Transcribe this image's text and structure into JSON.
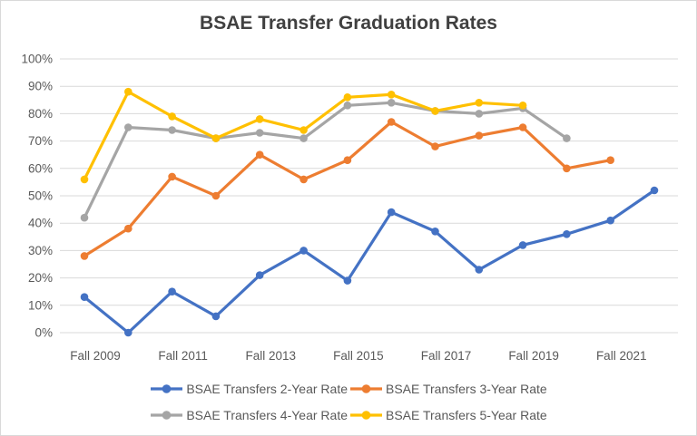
{
  "window": {
    "background": "#FFFFFF",
    "frame_border_color": "#D9D9D9"
  },
  "chart_data": {
    "type": "line",
    "title": "BSAE Transfer Graduation Rates",
    "title_color": "#404040",
    "axis_label_color": "#595959",
    "gridline_color": "#D9D9D9",
    "grid": "horizontal",
    "legend_position": "bottom",
    "xlabel": "",
    "ylabel": "",
    "ylim": [
      0,
      100
    ],
    "y_tick_step": 10,
    "y_ticks": [
      "0%",
      "10%",
      "20%",
      "30%",
      "40%",
      "50%",
      "60%",
      "70%",
      "80%",
      "90%",
      "100%"
    ],
    "categories": [
      "Fall 2009",
      "Fall 2010",
      "Fall 2011",
      "Fall 2012",
      "Fall 2013",
      "Fall 2014",
      "Fall 2015",
      "Fall 2016",
      "Fall 2017",
      "Fall 2018",
      "Fall 2019",
      "Fall 2020",
      "Fall 2021",
      "Fall 2022"
    ],
    "x_tick_labels": [
      "Fall 2009",
      "Fall 2011",
      "Fall 2013",
      "Fall 2015",
      "Fall 2017",
      "Fall 2019",
      "Fall 2021"
    ],
    "series": [
      {
        "name": "BSAE Transfers 2-Year Rate",
        "color": "#4472C4",
        "marker": "circle",
        "values": [
          13,
          0,
          15,
          6,
          21,
          30,
          19,
          44,
          37,
          23,
          32,
          36,
          41,
          52
        ]
      },
      {
        "name": "BSAE Transfers 3-Year Rate",
        "color": "#ED7D31",
        "marker": "circle",
        "values": [
          28,
          38,
          57,
          50,
          65,
          56,
          63,
          77,
          68,
          72,
          75,
          60,
          63,
          null
        ]
      },
      {
        "name": "BSAE Transfers 4-Year Rate",
        "color": "#A5A5A5",
        "marker": "circle",
        "values": [
          42,
          75,
          74,
          71,
          73,
          71,
          83,
          84,
          81,
          80,
          82,
          71,
          null,
          null
        ]
      },
      {
        "name": "BSAE Transfers 5-Year Rate",
        "color": "#FFC000",
        "marker": "circle",
        "values": [
          56,
          88,
          79,
          71,
          78,
          74,
          86,
          87,
          81,
          84,
          83,
          null,
          null,
          null
        ]
      }
    ],
    "legend_rows": [
      [
        0,
        1
      ],
      [
        2,
        3
      ]
    ]
  }
}
